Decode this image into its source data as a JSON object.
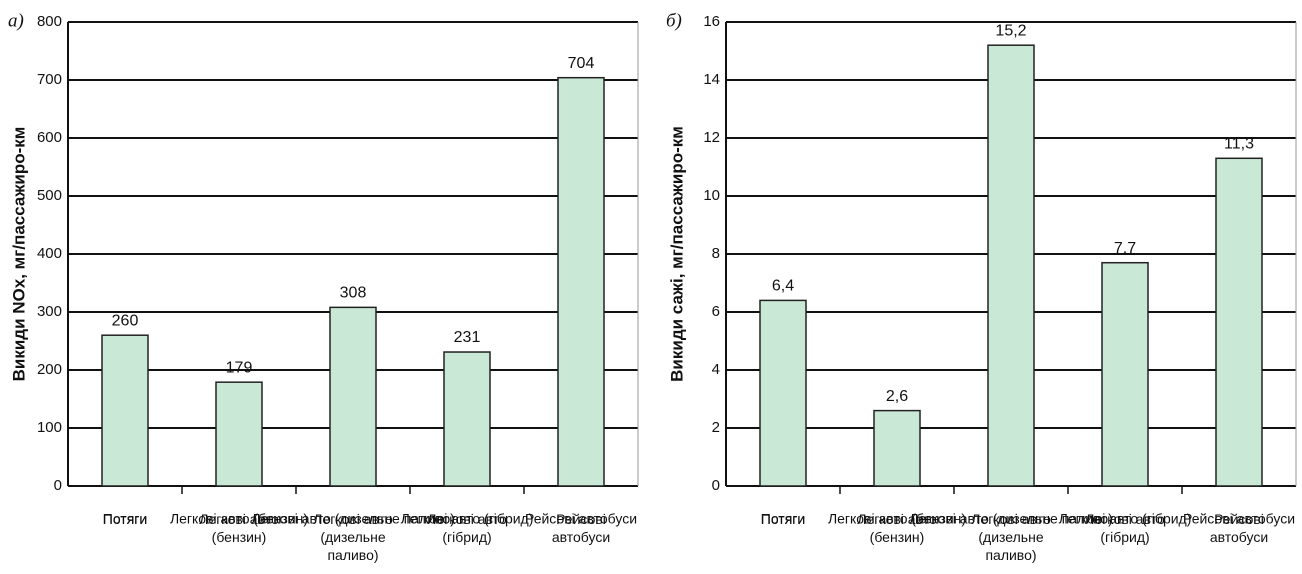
{
  "chart_data": [
    {
      "type": "bar",
      "panel_label": "а)",
      "y_label": "Викиди  NOx, мг/пассажиро-км",
      "categories": [
        "Потяги",
        "Легкові авто\n(бензин)",
        "Легкові авто\n(дизельне\nпаливо)",
        "Легкові авто\n(гібрид)",
        "Рейсові\nавтобуси"
      ],
      "values": [
        260,
        179,
        308,
        231,
        704
      ],
      "color": "#c9e8d6",
      "ylim": [
        0,
        800
      ],
      "yticks": [
        0,
        100,
        200,
        300,
        400,
        500,
        600,
        700,
        800
      ],
      "grid": true
    },
    {
      "type": "bar",
      "panel_label": "б)",
      "y_label": "Викиди сажі, мг/пассажиро-км",
      "categories": [
        "Потяги",
        "Легкові авто\n(бензин)",
        "Легкові авто\n(дизельне\nпаливо)",
        "Легкові авто\n(гібрид)",
        "Рейсові\nавтобуси"
      ],
      "values": [
        6.4,
        2.6,
        15.2,
        7.7,
        11.3
      ],
      "value_labels": [
        "6,4",
        "2,6",
        "15,2",
        "7,7",
        "11,3"
      ],
      "color": "#c9e8d6",
      "ylim": [
        0,
        16
      ],
      "yticks": [
        0,
        2,
        4,
        6,
        8,
        10,
        12,
        14,
        16
      ],
      "grid": true
    }
  ]
}
